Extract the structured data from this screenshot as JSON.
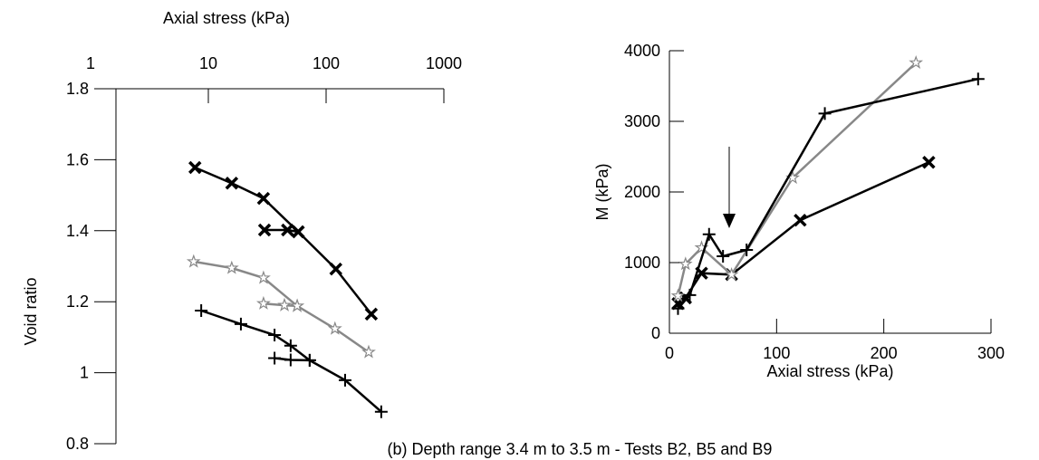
{
  "caption": "(b) Depth range 3.4 m to 3.5 m - Tests B2, B5 and B9",
  "chart_data": [
    {
      "type": "line",
      "xlabel": "Axial stress (kPa)",
      "ylabel": "Void ratio",
      "xscale": "log",
      "xaxis_position": "top",
      "xlim": [
        1,
        1000
      ],
      "xticks": [
        1,
        10,
        100,
        1000
      ],
      "ylim": [
        0.8,
        1.8
      ],
      "yticks": [
        0.8,
        1,
        1.2,
        1.4,
        1.6,
        1.8
      ],
      "series": [
        {
          "marker": "x",
          "color": "#000000",
          "x": [
            7.7,
            15.8,
            29.4,
            58,
            121,
            242,
            null,
            30,
            47,
            58
          ],
          "values": [
            1.578,
            1.534,
            1.491,
            1.397,
            1.292,
            1.165,
            null,
            1.402,
            1.402,
            1.397
          ]
        },
        {
          "marker": "star",
          "color": "#888888",
          "x": [
            7.5,
            15.8,
            29.4,
            56.8,
            119,
            230,
            null,
            29.4,
            44.3,
            56.8
          ],
          "values": [
            1.313,
            1.295,
            1.267,
            1.188,
            1.124,
            1.058,
            null,
            1.195,
            1.19,
            1.188
          ]
        },
        {
          "marker": "plus",
          "color": "#000000",
          "x": [
            8.7,
            18.9,
            36.5,
            50,
            72.5,
            145,
            294,
            null,
            36.5,
            50,
            72.5
          ],
          "values": [
            1.175,
            1.137,
            1.106,
            1.076,
            1.035,
            0.979,
            0.89,
            null,
            1.041,
            1.036,
            1.035
          ]
        }
      ]
    },
    {
      "type": "line",
      "xlabel": "Axial stress (kPa)",
      "ylabel": "M (kPa)",
      "xscale": "linear",
      "xaxis_position": "bottom",
      "xlim": [
        0,
        300
      ],
      "xticks": [
        0,
        100,
        200,
        300
      ],
      "ylim": [
        0,
        4000
      ],
      "yticks": [
        0,
        1000,
        2000,
        3000,
        4000
      ],
      "series": [
        {
          "marker": "x",
          "color": "#000000",
          "x": [
            8,
            15,
            30,
            58,
            122,
            242
          ],
          "values": [
            420,
            500,
            850,
            830,
            1600,
            2420
          ]
        },
        {
          "marker": "star",
          "color": "#888888",
          "x": [
            8,
            15,
            30,
            58,
            115,
            230
          ],
          "values": [
            530,
            980,
            1210,
            830,
            2200,
            3830
          ]
        },
        {
          "marker": "plus",
          "color": "#000000",
          "x": [
            8,
            19,
            37,
            50,
            72,
            145,
            288
          ],
          "values": [
            350,
            540,
            1400,
            1090,
            1180,
            3110,
            3600
          ]
        }
      ]
    }
  ]
}
